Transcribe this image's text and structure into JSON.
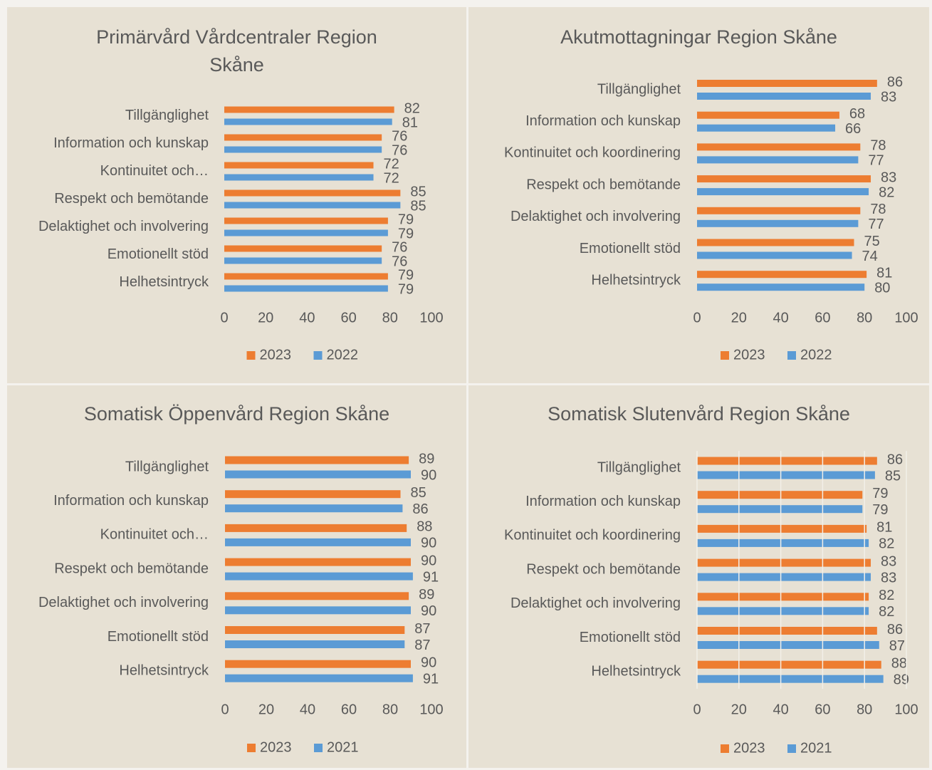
{
  "chart_data": [
    {
      "type": "bar",
      "orientation": "horizontal",
      "title": "Primärvård Vårdcentraler Region Skåne",
      "categories": [
        "Tillgänglighet",
        "Information och kunskap",
        "Kontinuitet och…",
        "Respekt och bemötande",
        "Delaktighet och involvering",
        "Emotionellt stöd",
        "Helhetsintryck"
      ],
      "series": [
        {
          "name": "2023",
          "color": "#ed7d31",
          "values": [
            82,
            76,
            72,
            85,
            79,
            76,
            79
          ]
        },
        {
          "name": "2022",
          "color": "#5b9bd5",
          "values": [
            81,
            76,
            72,
            85,
            79,
            76,
            79
          ]
        }
      ],
      "xlim": [
        0,
        100
      ],
      "xticks": [
        0,
        20,
        40,
        60,
        80,
        100
      ],
      "grid": false,
      "legend": "bottom"
    },
    {
      "type": "bar",
      "orientation": "horizontal",
      "title": "Akutmottagningar Region Skåne",
      "categories": [
        "Tillgänglighet",
        "Information och kunskap",
        "Kontinuitet och koordinering",
        "Respekt och bemötande",
        "Delaktighet och involvering",
        "Emotionellt stöd",
        "Helhetsintryck"
      ],
      "series": [
        {
          "name": "2023",
          "color": "#ed7d31",
          "values": [
            86,
            68,
            78,
            83,
            78,
            75,
            81
          ]
        },
        {
          "name": "2022",
          "color": "#5b9bd5",
          "values": [
            83,
            66,
            77,
            82,
            77,
            74,
            80
          ]
        }
      ],
      "xlim": [
        0,
        100
      ],
      "xticks": [
        0,
        20,
        40,
        60,
        80,
        100
      ],
      "grid": false,
      "legend": "bottom"
    },
    {
      "type": "bar",
      "orientation": "horizontal",
      "title": "Somatisk Öppenvård Region Skåne",
      "categories": [
        "Tillgänglighet",
        "Information och kunskap",
        "Kontinuitet och…",
        "Respekt och bemötande",
        "Delaktighet och involvering",
        "Emotionellt stöd",
        "Helhetsintryck"
      ],
      "series": [
        {
          "name": "2023",
          "color": "#ed7d31",
          "values": [
            89,
            85,
            88,
            90,
            89,
            87,
            90
          ]
        },
        {
          "name": "2021",
          "color": "#5b9bd5",
          "values": [
            90,
            86,
            90,
            91,
            90,
            87,
            91
          ]
        }
      ],
      "xlim": [
        0,
        100
      ],
      "xticks": [
        0,
        20,
        40,
        60,
        80,
        100
      ],
      "grid": false,
      "legend": "bottom"
    },
    {
      "type": "bar",
      "orientation": "horizontal",
      "title": "Somatisk Slutenvård Region Skåne",
      "categories": [
        "Tillgänglighet",
        "Information och kunskap",
        "Kontinuitet och koordinering",
        "Respekt och bemötande",
        "Delaktighet och involvering",
        "Emotionellt stöd",
        "Helhetsintryck"
      ],
      "series": [
        {
          "name": "2023",
          "color": "#ed7d31",
          "values": [
            86,
            79,
            81,
            83,
            82,
            86,
            88
          ]
        },
        {
          "name": "2021",
          "color": "#5b9bd5",
          "values": [
            85,
            79,
            82,
            83,
            82,
            87,
            89
          ]
        }
      ],
      "xlim": [
        0,
        100
      ],
      "xticks": [
        0,
        20,
        40,
        60,
        80,
        100
      ],
      "grid": true,
      "legend": "bottom"
    }
  ]
}
